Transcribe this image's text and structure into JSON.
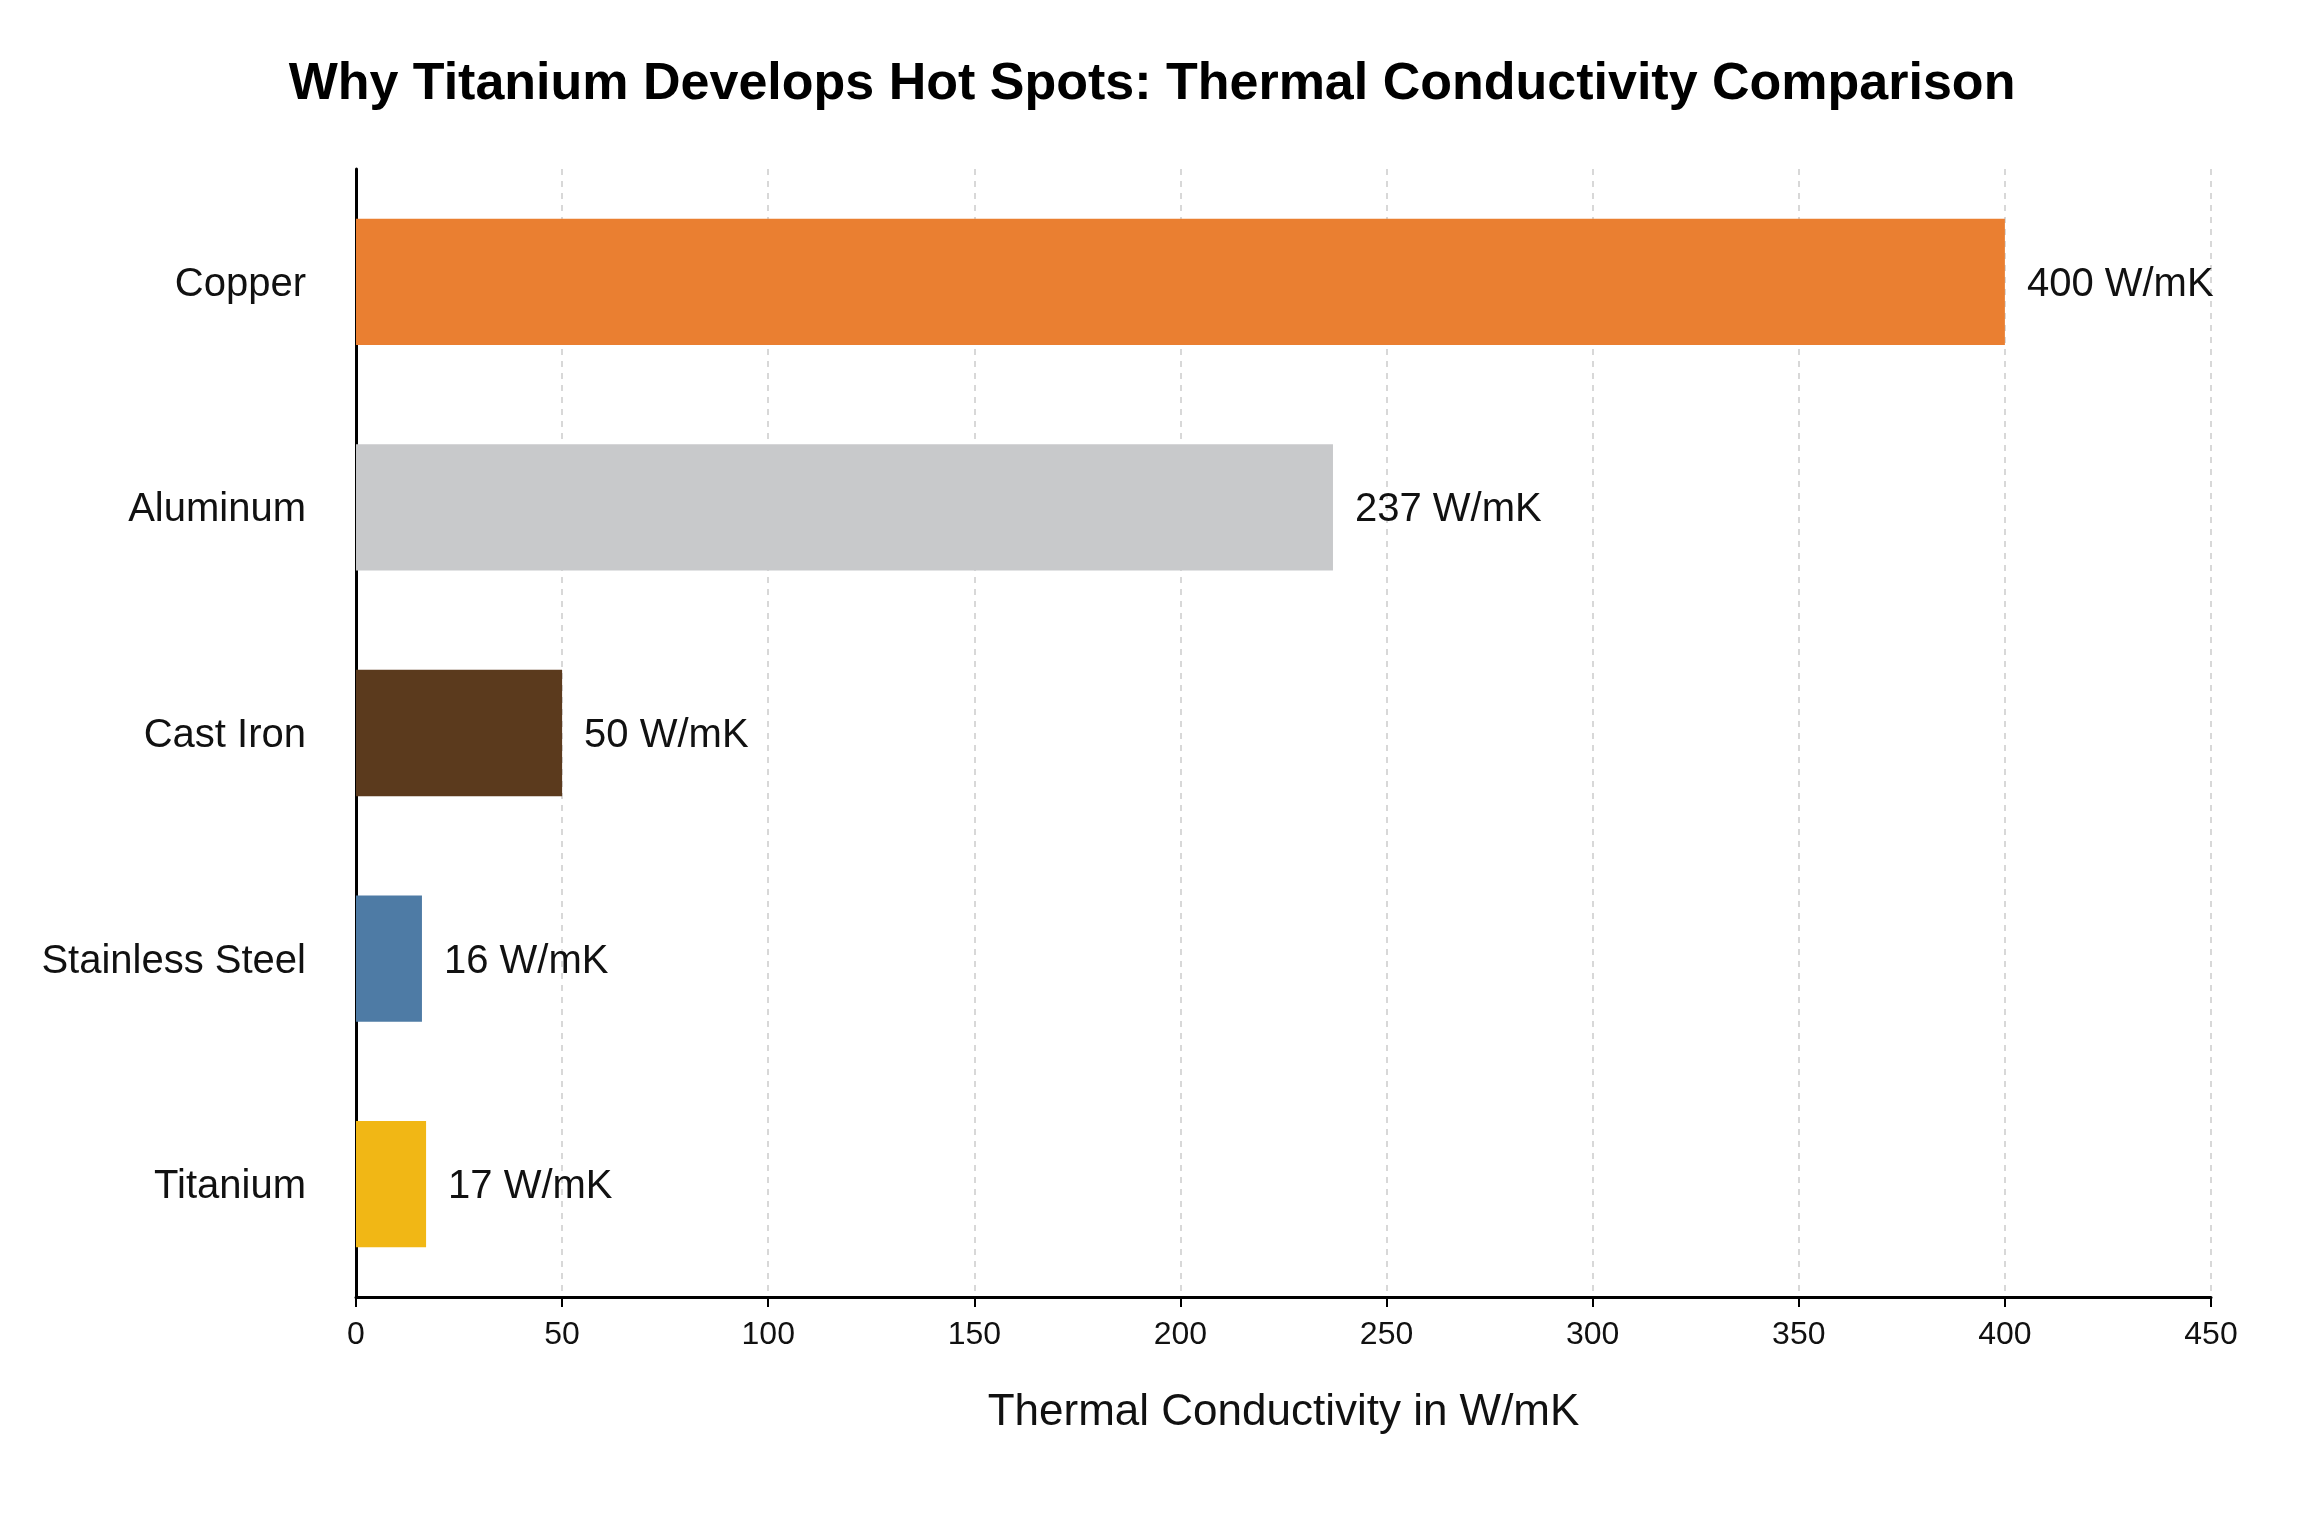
{
  "chart_data": {
    "type": "bar",
    "orientation": "horizontal",
    "title": "Why Titanium Develops Hot Spots: Thermal Conductivity Comparison",
    "xlabel": "Thermal Conductivity in W/mK",
    "categories": [
      "Copper",
      "Aluminum",
      "Cast Iron",
      "Stainless Steel",
      "Titanium"
    ],
    "values": [
      400,
      237,
      50,
      16,
      17
    ],
    "colors": [
      "#ea7f31",
      "#c8c9cb",
      "#5b3a1d",
      "#4e7ba5",
      "#f1b715"
    ],
    "value_labels": [
      "400 W/mK",
      "237 W/mK",
      "50 W/mK",
      "16 W/mK",
      "17 W/mK"
    ],
    "xlim": [
      0,
      450
    ],
    "xticks": [
      0,
      50,
      100,
      150,
      200,
      250,
      300,
      350,
      400,
      450
    ],
    "grid": "x"
  }
}
